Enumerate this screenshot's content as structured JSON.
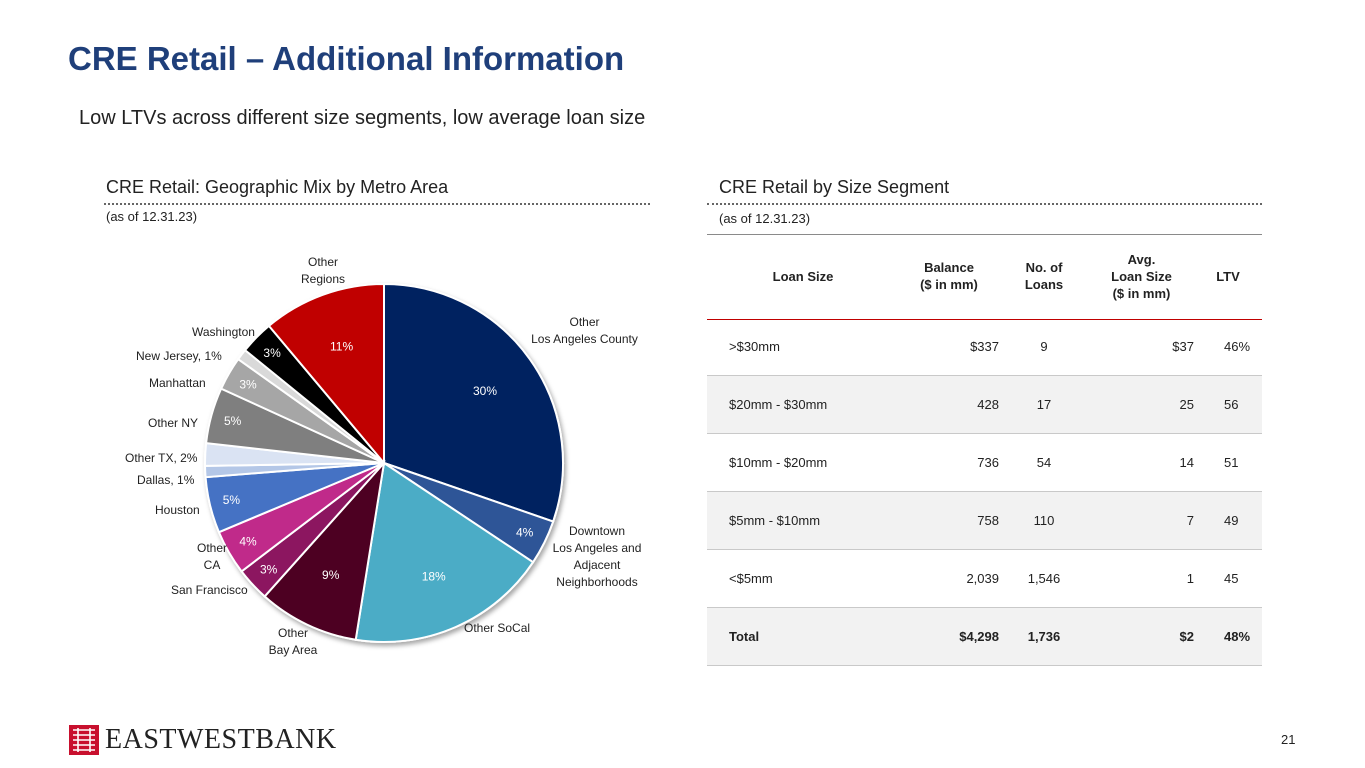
{
  "title": "CRE Retail – Additional Information",
  "subtitle": "Low LTVs across different size segments, low average loan size",
  "left_panel": {
    "title": "CRE Retail: Geographic Mix by Metro Area",
    "as_of": "(as of 12.31.23)"
  },
  "right_panel": {
    "title": "CRE Retail by Size Segment",
    "as_of": "(as of 12.31.23)"
  },
  "chart_data": {
    "type": "pie",
    "title": "CRE Retail: Geographic Mix by Metro Area",
    "slices": [
      {
        "name": "Other Los Angeles County",
        "label_lines": [
          "Other",
          "Los Angeles County"
        ],
        "value": 30,
        "pct_label": "30%",
        "color": "#002060"
      },
      {
        "name": "Downtown Los Angeles and Adjacent Neighborhoods",
        "label_lines": [
          "Downtown",
          "Los Angeles and",
          "Adjacent",
          "Neighborhoods"
        ],
        "value": 4,
        "pct_label": "4%",
        "color": "#2f5597"
      },
      {
        "name": "Other SoCal",
        "label_lines": [
          "Other SoCal"
        ],
        "value": 18,
        "pct_label": "18%",
        "color": "#4bacc6"
      },
      {
        "name": "Other Bay Area",
        "label_lines": [
          "Other",
          "Bay Area"
        ],
        "value": 9,
        "pct_label": "9%",
        "color": "#4e0020"
      },
      {
        "name": "San Francisco",
        "label_lines": [
          "San Francisco"
        ],
        "value": 3,
        "pct_label": "3%",
        "color": "#8c1560"
      },
      {
        "name": "Other CA",
        "label_lines": [
          "Other",
          "CA"
        ],
        "value": 4,
        "pct_label": "4%",
        "color": "#c02c8a"
      },
      {
        "name": "Houston",
        "label_lines": [
          "Houston"
        ],
        "value": 5,
        "pct_label": "5%",
        "color": "#4472c4"
      },
      {
        "name": "Dallas",
        "label_lines": [
          "Dallas, 1%"
        ],
        "value": 1,
        "pct_label": "",
        "color": "#b4c7e7"
      },
      {
        "name": "Other TX",
        "label_lines": [
          "Other TX, 2%"
        ],
        "value": 2,
        "pct_label": "",
        "color": "#dae3f3"
      },
      {
        "name": "Other NY",
        "label_lines": [
          "Other NY"
        ],
        "value": 5,
        "pct_label": "5%",
        "color": "#7f7f7f"
      },
      {
        "name": "Manhattan",
        "label_lines": [
          "Manhattan"
        ],
        "value": 3,
        "pct_label": "3%",
        "color": "#a6a6a6"
      },
      {
        "name": "New Jersey",
        "label_lines": [
          "New Jersey, 1%"
        ],
        "value": 1,
        "pct_label": "",
        "color": "#d9d9d9"
      },
      {
        "name": "Washington",
        "label_lines": [
          "Washington"
        ],
        "value": 3,
        "pct_label": "3%",
        "color": "#000000"
      },
      {
        "name": "Other Regions",
        "label_lines": [
          "Other",
          "Regions"
        ],
        "value": 11,
        "pct_label": "11%",
        "color": "#c00000"
      }
    ]
  },
  "table": {
    "headers": [
      [
        "Loan Size"
      ],
      [
        "Balance",
        "($ in mm)"
      ],
      [
        "No. of",
        "Loans"
      ],
      [
        "Avg.",
        "Loan Size",
        "($ in mm)"
      ],
      [
        "LTV"
      ]
    ],
    "rows": [
      [
        ">$30mm",
        "$337",
        "9",
        "$37",
        "46%"
      ],
      [
        "$20mm - $30mm",
        "428",
        "17",
        "25",
        "56"
      ],
      [
        "$10mm - $20mm",
        "736",
        "54",
        "14",
        "51"
      ],
      [
        "$5mm - $10mm",
        "758",
        "110",
        "7",
        "49"
      ],
      [
        "<$5mm",
        "2,039",
        "1,546",
        "1",
        "45"
      ]
    ],
    "total": [
      "Total",
      "$4,298",
      "1,736",
      "$2",
      "48%"
    ]
  },
  "footer": {
    "logo_text": "EASTWESTBANK",
    "page_number": "21"
  }
}
